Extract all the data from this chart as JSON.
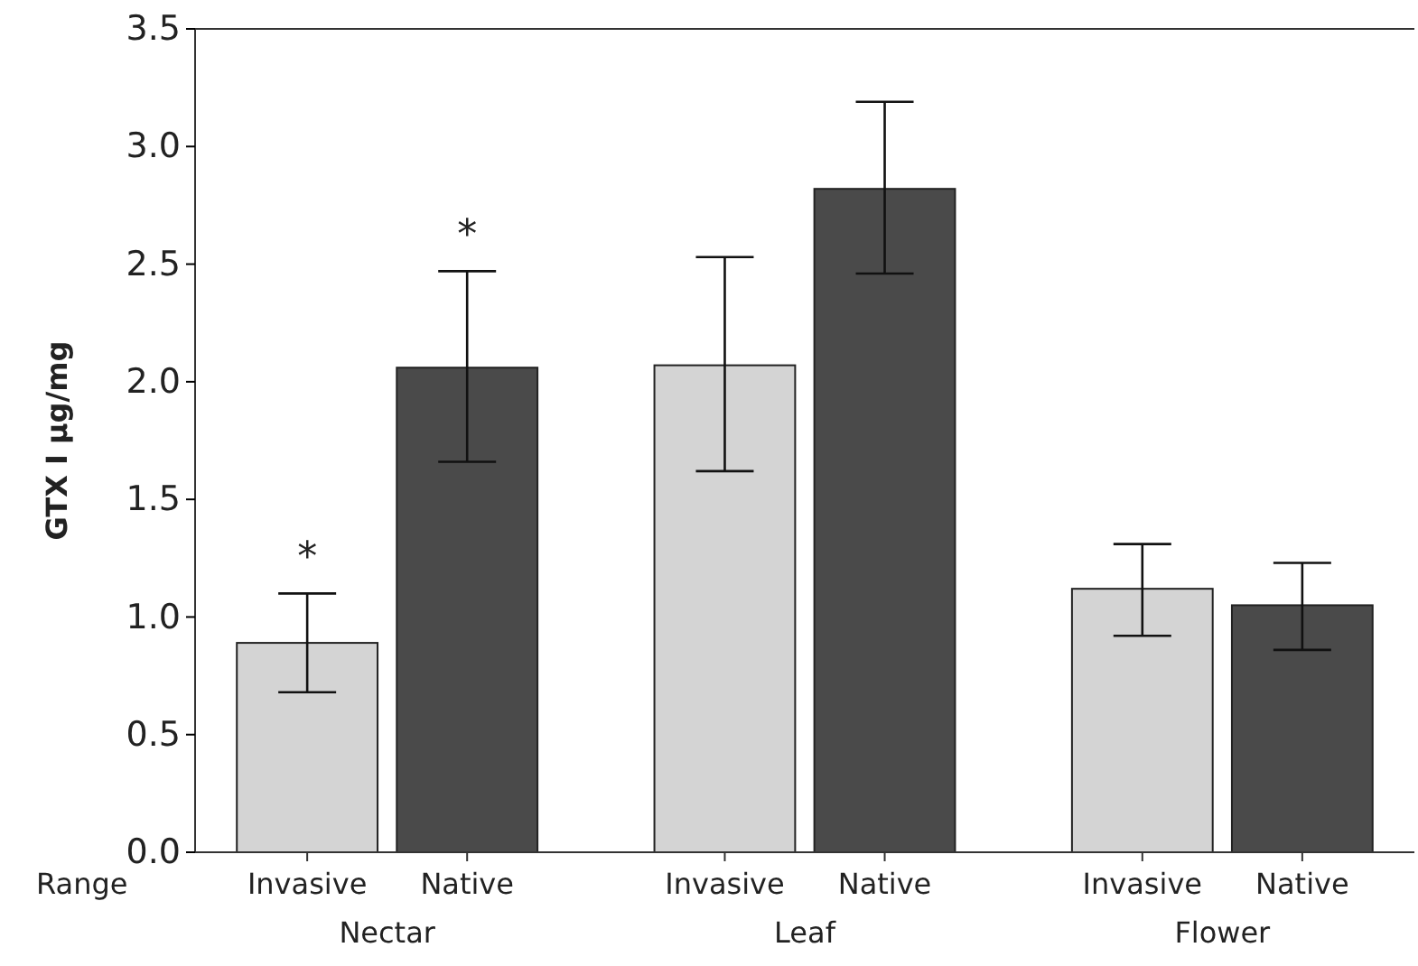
{
  "chart_data": {
    "type": "bar",
    "ylabel": "GTX I µg/mg",
    "legend_title": "Range",
    "categories": [
      "Nectar",
      "Leaf",
      "Flower"
    ],
    "series": [
      {
        "name": "Invasive",
        "color": "#d4d4d4",
        "values": [
          0.89,
          2.07,
          1.12
        ],
        "errors": [
          [
            0.68,
            1.1
          ],
          [
            1.62,
            2.53
          ],
          [
            0.92,
            1.31
          ]
        ]
      },
      {
        "name": "Native",
        "color": "#4a4a4a",
        "values": [
          2.06,
          2.82,
          1.05
        ],
        "errors": [
          [
            1.66,
            2.47
          ],
          [
            2.46,
            3.19
          ],
          [
            0.86,
            1.23
          ]
        ]
      }
    ],
    "ylim": [
      0,
      3.5
    ],
    "yticks": [
      {
        "value": 0,
        "label": "0.0"
      },
      {
        "value": 0.5,
        "label": "0.5"
      },
      {
        "value": 1,
        "label": "1.0"
      },
      {
        "value": 1.5,
        "label": "1.5"
      },
      {
        "value": 2,
        "label": "2.0"
      },
      {
        "value": 2.5,
        "label": "2.5"
      },
      {
        "value": 3,
        "label": "3.0"
      },
      {
        "value": 3.5,
        "label": "3.5"
      }
    ],
    "grid": false,
    "annotations": [
      "*",
      "*"
    ]
  }
}
